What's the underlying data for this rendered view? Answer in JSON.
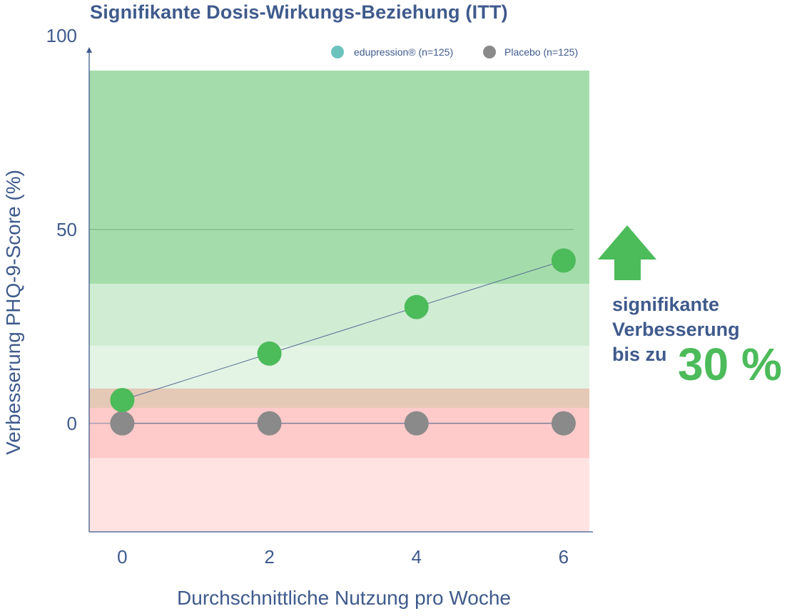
{
  "title": "Signifikante Dosis-Wirkungs-Beziehung (ITT)",
  "callout": {
    "line1": "signifikante",
    "line2": "Verbesserung",
    "line3": "bis zu",
    "value": "30 %"
  },
  "chart_data": {
    "type": "scatter",
    "xlabel": "Durchschnittliche Nutzung pro Woche",
    "ylabel": "Verbesserung PHQ-9-Score (%)",
    "x_ticks": [
      "0",
      "2",
      "4",
      "6"
    ],
    "y_ticks": [
      "0",
      "50",
      "100"
    ],
    "xlim": [
      -0.45,
      6.35
    ],
    "ylim": [
      -28,
      91
    ],
    "legend_position": "top-right",
    "series": [
      {
        "name": "edupression® (n=125)",
        "color": "#4cbb5a",
        "legend_color": "#6cc3bd",
        "x": [
          0,
          2,
          4,
          6
        ],
        "y": [
          6,
          18,
          30,
          42
        ]
      },
      {
        "name": "Placebo (n=125)",
        "color": "#8a8a8a",
        "legend_color": "#8a8a8a",
        "x": [
          0,
          2,
          4,
          6
        ],
        "y": [
          0,
          0,
          0,
          0
        ]
      }
    ],
    "bands": [
      {
        "from": 36,
        "to": 91,
        "color": "#a4ddab"
      },
      {
        "from": 20,
        "to": 36,
        "color": "#d0ecd3"
      },
      {
        "from": 9,
        "to": 20,
        "color": "#e3f4e5"
      },
      {
        "from": 4,
        "to": 9,
        "color": "#e5c9b7"
      },
      {
        "from": -9,
        "to": 4,
        "color": "#fecaca"
      },
      {
        "from": -28,
        "to": -9,
        "color": "#ffe3e3"
      }
    ],
    "reference_lines": [
      0,
      50
    ],
    "colors": {
      "axis": "#3f5a8c",
      "text": "#3f5a8c",
      "arrow": "#4cbb5a"
    }
  }
}
